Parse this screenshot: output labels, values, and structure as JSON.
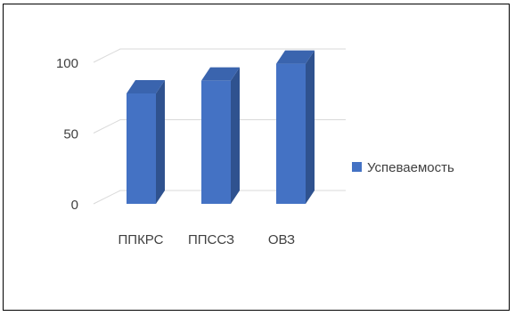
{
  "chart_data": {
    "type": "bar",
    "categories": [
      "ППКРС",
      "ППССЗ",
      "ОВЗ"
    ],
    "series": [
      {
        "name": "Успеваемость",
        "values": [
          78,
          87,
          99
        ]
      }
    ],
    "yticks": [
      0,
      50,
      100
    ],
    "ylim": [
      0,
      100
    ],
    "grid": true,
    "legend": "right",
    "colors": {
      "bar_front": "#4472C4",
      "bar_side": "#2F528F",
      "bar_top": "#3A64AE",
      "grid": "#D9D9D9",
      "text": "#404040"
    }
  }
}
